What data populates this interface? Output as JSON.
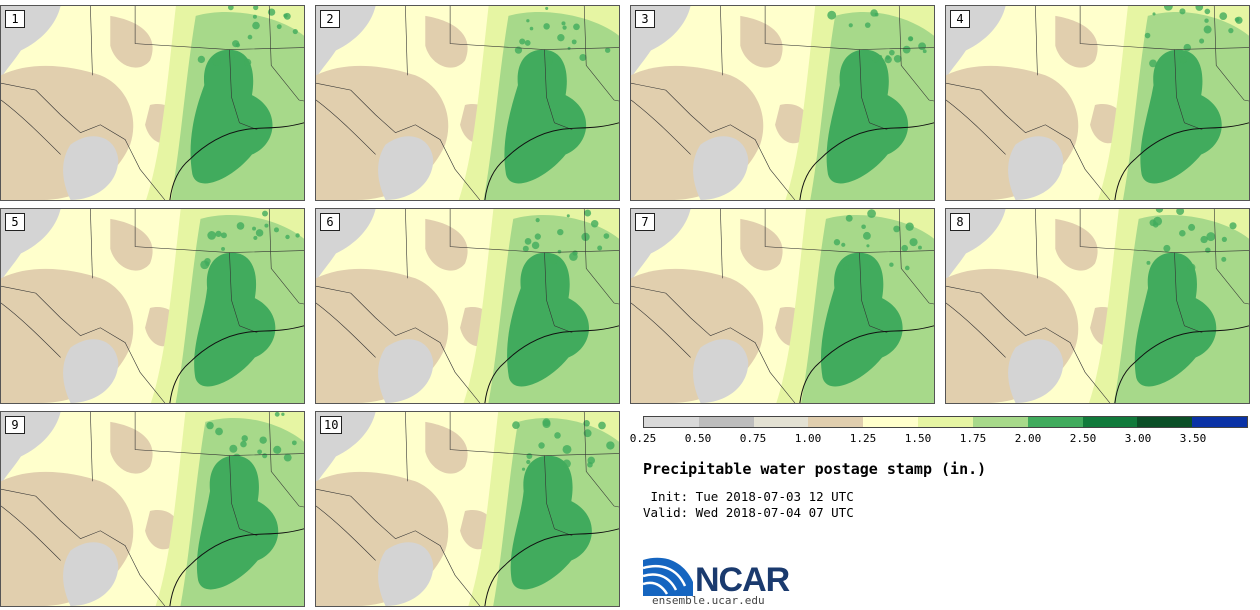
{
  "panels": [
    {
      "label": "1"
    },
    {
      "label": "2"
    },
    {
      "label": "3"
    },
    {
      "label": "4"
    },
    {
      "label": "5"
    },
    {
      "label": "6"
    },
    {
      "label": "7"
    },
    {
      "label": "8"
    },
    {
      "label": "9"
    },
    {
      "label": "10"
    }
  ],
  "colorbar": {
    "ticks": [
      "0.25",
      "0.50",
      "0.75",
      "1.00",
      "1.25",
      "1.50",
      "1.75",
      "2.00",
      "2.50",
      "3.00",
      "3.50"
    ],
    "colors": [
      "#d9d9d9",
      "#bdbdbd",
      "#e3e1d3",
      "#e0ceae",
      "#ffffcc",
      "#e6f5a3",
      "#a7d98a",
      "#41ab5d",
      "#117a3b",
      "#0b4f27",
      "#0a32a6"
    ]
  },
  "title": "Precipitable water postage stamp (in.)",
  "init": " Init: Tue 2018-07-03 12 UTC",
  "valid": "Valid: Wed 2018-07-04 07 UTC",
  "logo": {
    "text": "NCAR",
    "url_text": "ensemble.ucar.edu"
  },
  "palette": {
    "dry_gray": "#d4d4d4",
    "tan": "#e1cfae",
    "pale": "#ffffcc",
    "lime": "#e6f5a3",
    "green": "#a7d98a",
    "dark_green": "#41ab5d"
  }
}
